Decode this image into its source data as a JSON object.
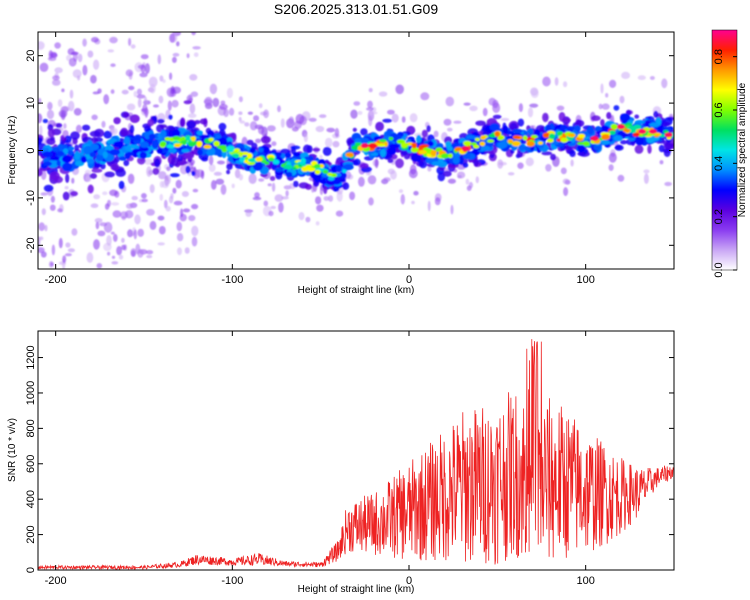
{
  "title": "S206.2025.313.01.51.G09",
  "charts": [
    {
      "type": "heatmap",
      "xlabel": "Height of straight line (km)",
      "ylabel": "Frequency (Hz)",
      "xlim": [
        -210,
        150
      ],
      "ylim": [
        -25,
        25
      ],
      "xticks": [
        -200,
        -100,
        0,
        100
      ],
      "yticks": [
        20,
        10,
        0,
        -10,
        -20
      ],
      "colorbar": {
        "label": "Normalized spectral amplitude",
        "lim": [
          0.0,
          0.9
        ],
        "ticks": [
          "0.0",
          "0.2",
          "0.4",
          "0.6",
          "0.8"
        ],
        "colors": [
          "#ffffff",
          "#c9a6f5",
          "#8a3cf0",
          "#5a00e0",
          "#0000ff",
          "#0090ff",
          "#00e5e5",
          "#00e060",
          "#80ff00",
          "#ffff00",
          "#ff9900",
          "#ff2000",
          "#ff0090"
        ]
      },
      "ridge": {
        "x": [
          -210,
          -190,
          -170,
          -150,
          -130,
          -110,
          -100,
          -90,
          -80,
          -70,
          -60,
          -50,
          -40,
          -30,
          -20,
          -10,
          0,
          10,
          20,
          30,
          40,
          50,
          60,
          70,
          80,
          90,
          100,
          110,
          120,
          130,
          140,
          150
        ],
        "y": [
          -1,
          -1.5,
          0,
          1,
          2,
          1.5,
          0,
          -2,
          -2,
          -3,
          -3,
          -4,
          -6,
          1,
          1,
          2,
          1,
          0,
          -1,
          0,
          2,
          3,
          2,
          2,
          3,
          3,
          2,
          3,
          5,
          4,
          4,
          3
        ]
      }
    },
    {
      "type": "line",
      "xlabel": "Height of straight line (km)",
      "ylabel": "SNR (10 * v/v)",
      "xlim": [
        -210,
        150
      ],
      "ylim": [
        0,
        1350
      ],
      "xticks": [
        -200,
        -100,
        0,
        100
      ],
      "yticks": [
        0,
        200,
        400,
        600,
        800,
        1000,
        1200
      ],
      "color": "#ee2222",
      "envelope": {
        "x": [
          -210,
          -150,
          -130,
          -120,
          -100,
          -85,
          -70,
          -50,
          -40,
          -35,
          -20,
          0,
          20,
          30,
          50,
          60,
          70,
          80,
          90,
          100,
          110,
          120,
          130,
          140,
          150
        ],
        "mean": [
          15,
          15,
          30,
          60,
          45,
          60,
          35,
          30,
          110,
          240,
          260,
          330,
          420,
          470,
          500,
          550,
          520,
          500,
          490,
          440,
          430,
          420,
          440,
          520,
          560
        ],
        "amp": [
          10,
          10,
          15,
          30,
          20,
          35,
          15,
          15,
          60,
          140,
          180,
          280,
          380,
          440,
          470,
          480,
          520,
          480,
          430,
          360,
          300,
          220,
          140,
          60,
          40
        ]
      }
    }
  ]
}
